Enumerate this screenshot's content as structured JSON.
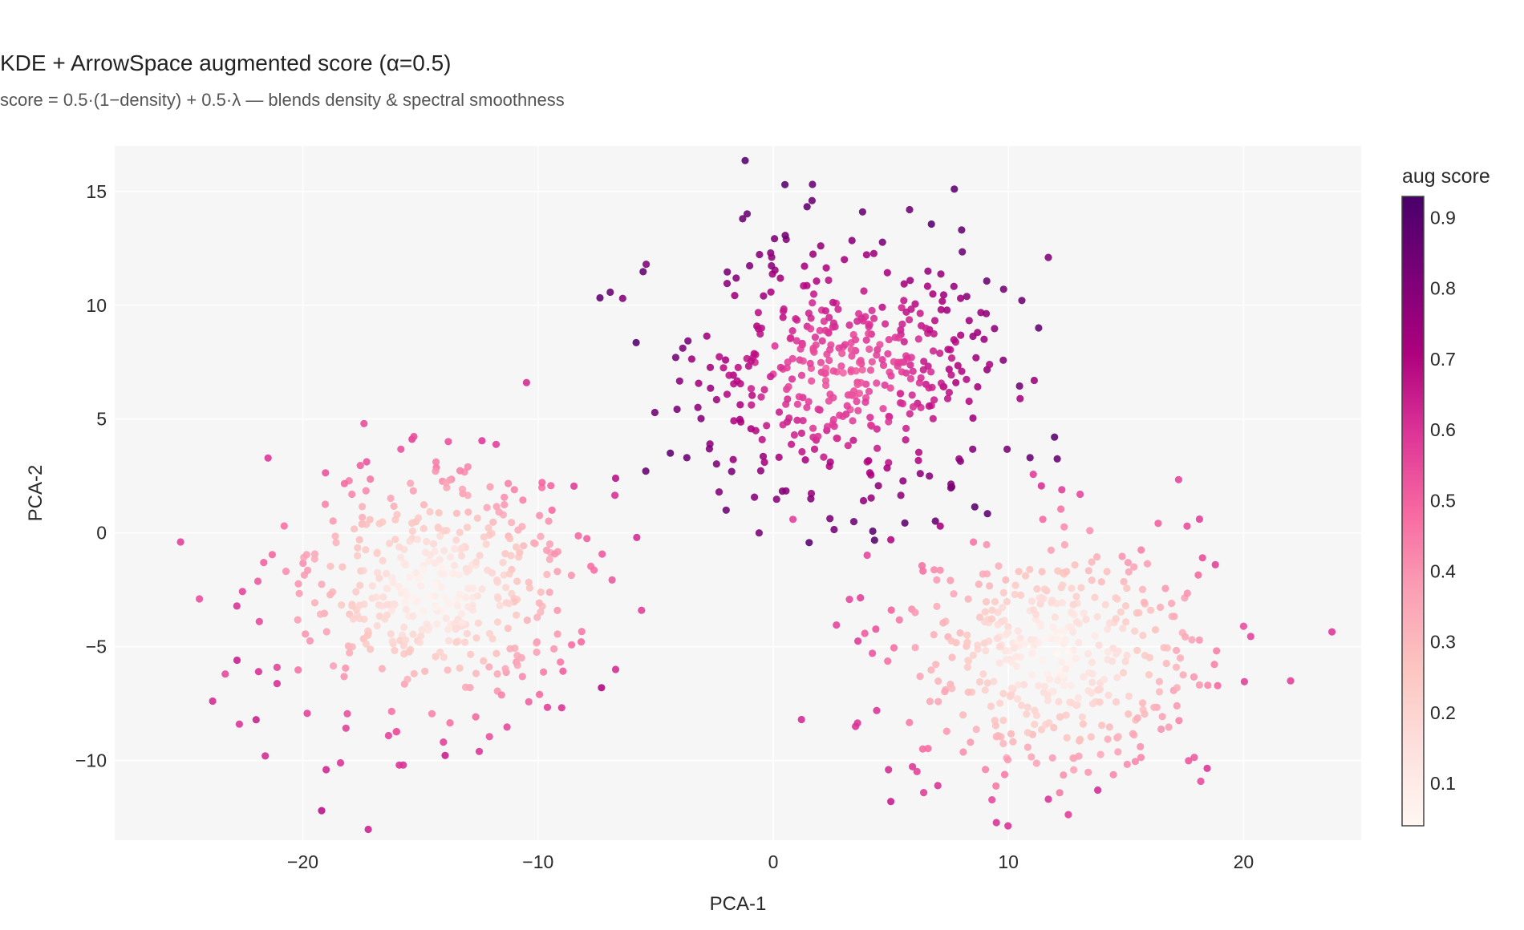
{
  "chart_data": {
    "type": "scatter",
    "title": "KDE + ArrowSpace augmented score  (α=0.5)",
    "subtitle": "score = 0.5·(1−density) + 0.5·λ  — blends density & spectral smoothness",
    "xlabel": "PCA-1",
    "ylabel": "PCA-2",
    "xlim": [
      -28,
      25
    ],
    "ylim": [
      -13.5,
      17
    ],
    "xticks": [
      -20,
      -10,
      0,
      10,
      20
    ],
    "xtick_labels": [
      "−20",
      "−10",
      "0",
      "10",
      "20"
    ],
    "yticks": [
      -10,
      -5,
      0,
      5,
      10,
      15
    ],
    "ytick_labels": [
      "−10",
      "−5",
      "0",
      "5",
      "10",
      "15"
    ],
    "grid": true,
    "colorbar": {
      "title": "aug score",
      "range": [
        0.04,
        0.93
      ],
      "ticks": [
        0.1,
        0.2,
        0.3,
        0.4,
        0.5,
        0.6,
        0.7,
        0.8,
        0.9
      ],
      "tick_labels": [
        "0.1",
        "0.2",
        "0.3",
        "0.4",
        "0.5",
        "0.6",
        "0.7",
        "0.8",
        "0.9"
      ],
      "colorscale": [
        "#fff7f3",
        "#fde0dd",
        "#fcc5c0",
        "#fa9fb5",
        "#f768a1",
        "#dd3497",
        "#ae017e",
        "#7a0177",
        "#49006a"
      ]
    },
    "background_color": "#f6f6f6",
    "grid_color": "#ffffff",
    "clusters": [
      {
        "cx": -14.5,
        "cy": -2.5,
        "n": 430,
        "min_score": 0.06,
        "max_score": 0.62
      },
      {
        "cx": 3.0,
        "cy": 7.0,
        "n": 440,
        "min_score": 0.52,
        "max_score": 0.88
      },
      {
        "cx": 12.0,
        "cy": -5.3,
        "n": 430,
        "min_score": 0.06,
        "max_score": 0.58
      }
    ],
    "outliers": [
      {
        "x": -25.2,
        "y": -0.4,
        "score": 0.58
      },
      {
        "x": -24.4,
        "y": -2.9,
        "score": 0.55
      },
      {
        "x": -23.3,
        "y": -6.2,
        "score": 0.56
      },
      {
        "x": -22.7,
        "y": -8.4,
        "score": 0.6
      },
      {
        "x": -21.6,
        "y": -9.8,
        "score": 0.62
      },
      {
        "x": -19.2,
        "y": -12.2,
        "score": 0.68
      },
      {
        "x": -18.4,
        "y": -10.1,
        "score": 0.6
      },
      {
        "x": -17.4,
        "y": 4.8,
        "score": 0.55
      },
      {
        "x": -15.9,
        "y": -10.2,
        "score": 0.6
      },
      {
        "x": -12.5,
        "y": -9.6,
        "score": 0.6
      },
      {
        "x": -7.3,
        "y": -6.8,
        "score": 0.7
      },
      {
        "x": -6.7,
        "y": -6.0,
        "score": 0.62
      },
      {
        "x": -5.6,
        "y": -3.4,
        "score": 0.58
      },
      {
        "x": -5.8,
        "y": -0.2,
        "score": 0.62
      },
      {
        "x": -6.7,
        "y": 2.4,
        "score": 0.68
      },
      {
        "x": -6.4,
        "y": 10.3,
        "score": 0.8
      },
      {
        "x": -5.4,
        "y": 11.8,
        "score": 0.8
      },
      {
        "x": -2.3,
        "y": 1.8,
        "score": 0.8
      },
      {
        "x": -2.0,
        "y": 1.0,
        "score": 0.85
      },
      {
        "x": -1.3,
        "y": 13.8,
        "score": 0.86
      },
      {
        "x": -0.6,
        "y": 0.0,
        "score": 0.82
      },
      {
        "x": 0.5,
        "y": 15.3,
        "score": 0.9
      },
      {
        "x": 1.2,
        "y": -8.2,
        "score": 0.62
      },
      {
        "x": 1.6,
        "y": 1.5,
        "score": 0.8
      },
      {
        "x": 3.8,
        "y": 14.1,
        "score": 0.86
      },
      {
        "x": 5.0,
        "y": -0.3,
        "score": 0.7
      },
      {
        "x": 5.8,
        "y": 14.2,
        "score": 0.85
      },
      {
        "x": 7.7,
        "y": 15.1,
        "score": 0.88
      },
      {
        "x": 7.1,
        "y": 0.3,
        "score": 0.72
      },
      {
        "x": 9.2,
        "y": 7.4,
        "score": 0.7
      },
      {
        "x": 10.5,
        "y": 5.9,
        "score": 0.72
      },
      {
        "x": 11.1,
        "y": 6.7,
        "score": 0.75
      },
      {
        "x": 11.7,
        "y": 12.1,
        "score": 0.8
      },
      {
        "x": 4.4,
        "y": -7.8,
        "score": 0.6
      },
      {
        "x": 3.5,
        "y": -8.5,
        "score": 0.6
      },
      {
        "x": 4.9,
        "y": -10.4,
        "score": 0.62
      },
      {
        "x": 5.0,
        "y": -11.8,
        "score": 0.65
      },
      {
        "x": 7.0,
        "y": -11.1,
        "score": 0.6
      },
      {
        "x": 11.7,
        "y": -11.7,
        "score": 0.6
      },
      {
        "x": 13.8,
        "y": -11.3,
        "score": 0.62
      },
      {
        "x": 22.0,
        "y": -6.5,
        "score": 0.58
      },
      {
        "x": 20.0,
        "y": -4.1,
        "score": 0.55
      },
      {
        "x": 18.8,
        "y": -1.4,
        "score": 0.58
      },
      {
        "x": 17.6,
        "y": 0.3,
        "score": 0.55
      }
    ]
  }
}
